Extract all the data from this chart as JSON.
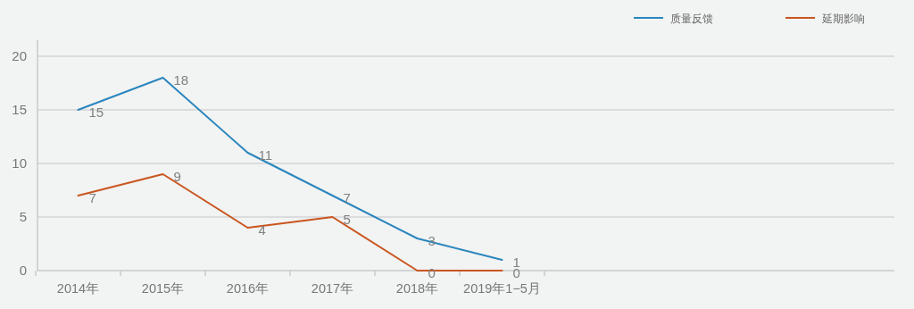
{
  "chart_data": {
    "type": "line",
    "categories": [
      "2014年",
      "2015年",
      "2016年",
      "2017年",
      "2018年",
      "2019年1−5月"
    ],
    "series": [
      {
        "name": "质量反馈",
        "color": "#2a86bd",
        "values": [
          15,
          18,
          11,
          7,
          3,
          1
        ]
      },
      {
        "name": "延期影响",
        "color": "#c9561f",
        "values": [
          7,
          9,
          4,
          5,
          0,
          0
        ]
      }
    ],
    "ylim": [
      0,
      21.5
    ],
    "yticks": [
      0,
      5,
      10,
      15,
      20
    ],
    "grid": "y",
    "legend": "top right",
    "data_labels": true
  }
}
